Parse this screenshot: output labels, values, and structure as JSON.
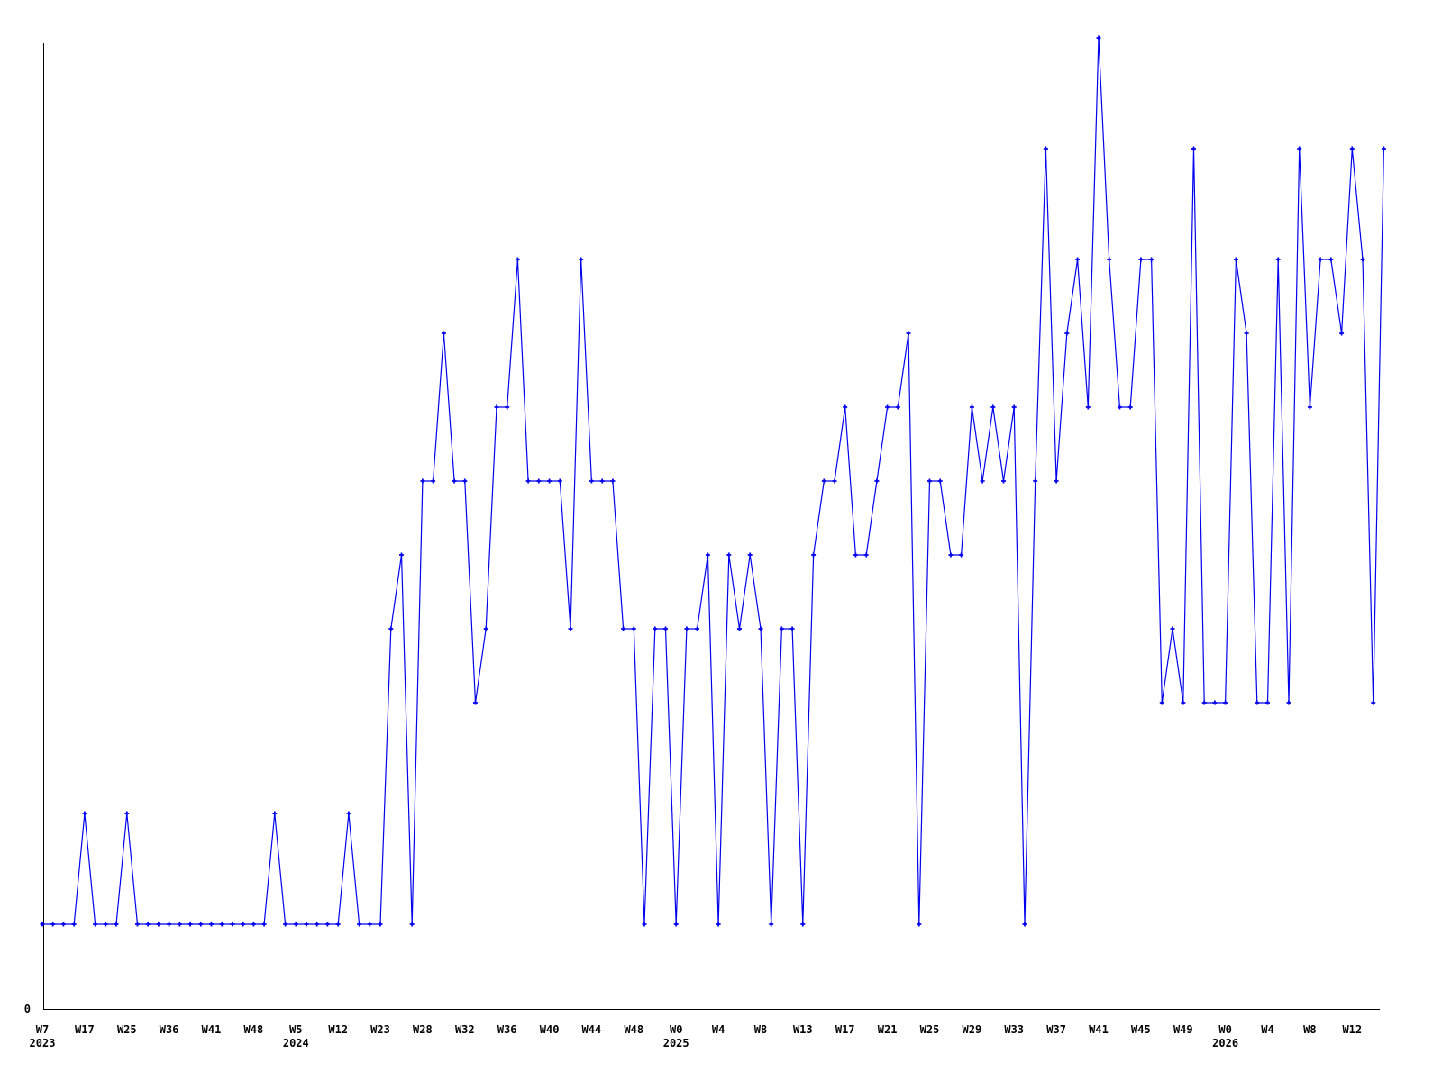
{
  "page": {
    "background_color": "#ffffff",
    "title": ""
  },
  "chart_data": {
    "type": "line",
    "title": "",
    "xlabel": "",
    "ylabel": "",
    "grid": false,
    "legend": false,
    "axis_color": "#000000",
    "y_axis": {
      "zero_label": "0",
      "ylim": [
        0,
        13.6
      ]
    },
    "x_tick_labels": [
      {
        "idx": 0,
        "label": "W7",
        "year": "2023"
      },
      {
        "idx": 4,
        "label": "W17"
      },
      {
        "idx": 8,
        "label": "W25"
      },
      {
        "idx": 12,
        "label": "W36"
      },
      {
        "idx": 16,
        "label": "W41"
      },
      {
        "idx": 20,
        "label": "W48"
      },
      {
        "idx": 24,
        "label": "W5",
        "year": "2024"
      },
      {
        "idx": 28,
        "label": "W12"
      },
      {
        "idx": 32,
        "label": "W23"
      },
      {
        "idx": 36,
        "label": "W28"
      },
      {
        "idx": 40,
        "label": "W32"
      },
      {
        "idx": 44,
        "label": "W36"
      },
      {
        "idx": 48,
        "label": "W40"
      },
      {
        "idx": 52,
        "label": "W44"
      },
      {
        "idx": 56,
        "label": "W48"
      },
      {
        "idx": 60,
        "label": "W0",
        "year": "2025"
      },
      {
        "idx": 64,
        "label": "W4"
      },
      {
        "idx": 68,
        "label": "W8"
      },
      {
        "idx": 72,
        "label": "W13"
      },
      {
        "idx": 76,
        "label": "W17"
      },
      {
        "idx": 80,
        "label": "W21"
      },
      {
        "idx": 84,
        "label": "W25"
      },
      {
        "idx": 88,
        "label": "W29"
      },
      {
        "idx": 92,
        "label": "W33"
      },
      {
        "idx": 96,
        "label": "W37"
      },
      {
        "idx": 100,
        "label": "W41"
      },
      {
        "idx": 104,
        "label": "W45"
      },
      {
        "idx": 108,
        "label": "W49"
      },
      {
        "idx": 112,
        "label": "W0",
        "year": "2026"
      },
      {
        "idx": 116,
        "label": "W4"
      },
      {
        "idx": 120,
        "label": "W8"
      },
      {
        "idx": 124,
        "label": "W12"
      }
    ],
    "series": [
      {
        "name": "weekly-values",
        "color": "#0000ee",
        "marker": "plus",
        "values": [
          1,
          1,
          1,
          1,
          2.5,
          1,
          1,
          1,
          2.5,
          1,
          1,
          1,
          1,
          1,
          1,
          1,
          1,
          1,
          1,
          1,
          1,
          1,
          2.5,
          1,
          1,
          1,
          1,
          1,
          1,
          2.5,
          1,
          1,
          1,
          5,
          6,
          1,
          7,
          7,
          9,
          7,
          7,
          4,
          5,
          8,
          8,
          10,
          7,
          7,
          7,
          7,
          5,
          10,
          7,
          7,
          7,
          5,
          5,
          1,
          5,
          5,
          1,
          5,
          5,
          6,
          1,
          6,
          5,
          6,
          5,
          1,
          5,
          5,
          1,
          6,
          7,
          7,
          8,
          6,
          6,
          7,
          8,
          8,
          9,
          1,
          7,
          7,
          6,
          6,
          8,
          7,
          8,
          7,
          8,
          1,
          7,
          11.5,
          7,
          9,
          10,
          8,
          13,
          10,
          8,
          8,
          10,
          10,
          4,
          5,
          4,
          11.5,
          4,
          4,
          4,
          10,
          9,
          4,
          4,
          10,
          4,
          11.5,
          8,
          10,
          10,
          9,
          11.5,
          10,
          4,
          11.5
        ]
      }
    ]
  }
}
